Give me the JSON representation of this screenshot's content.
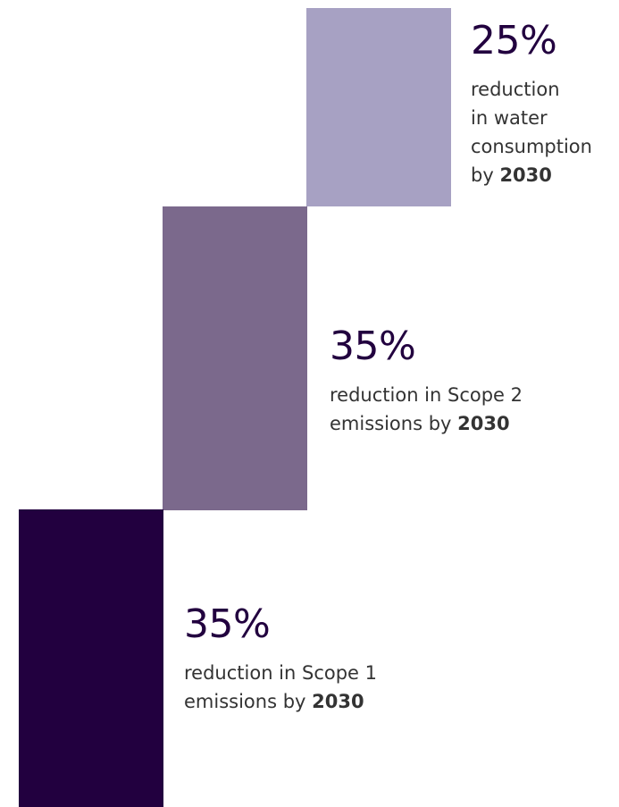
{
  "colors": {
    "light_purple": "#a7a1c3",
    "mid_purple": "#7b698c",
    "dark_purple": "#22003f",
    "text": "#333333",
    "figure": "#22003f"
  },
  "stats": {
    "water": {
      "figure": "25%",
      "line1": "reduction",
      "line2": "in water",
      "line3": "consumption",
      "line4_prefix": "by ",
      "year": "2030"
    },
    "scope2": {
      "figure": "35%",
      "line1": "reduction in Scope 2",
      "line2_prefix": "emissions by ",
      "year": "2030"
    },
    "scope1": {
      "figure": "35%",
      "line1": "reduction in Scope 1",
      "line2_prefix": "emissions by ",
      "year": "2030"
    }
  }
}
